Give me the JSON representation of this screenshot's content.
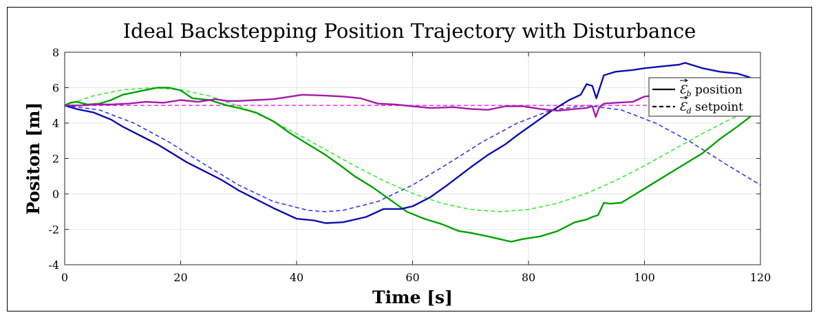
{
  "chart_data": {
    "type": "line",
    "title": "Ideal Backstepping Position Trajectory with Disturbance",
    "xlabel": "Time [s]",
    "ylabel": "Positon [m]",
    "xlim": [
      0,
      120
    ],
    "ylim": [
      -4,
      8
    ],
    "xticks": [
      0,
      20,
      40,
      60,
      80,
      100,
      120
    ],
    "yticks": [
      -4,
      -2,
      0,
      2,
      4,
      6,
      8
    ],
    "grid": true,
    "legend": {
      "placement": "top-right",
      "entries": [
        {
          "style": "solid",
          "symbol": "Ɛ",
          "sub": "b",
          "text": "position"
        },
        {
          "style": "dashed",
          "symbol": "Ɛ",
          "sub": "d",
          "text": "setpoint"
        }
      ]
    },
    "series": [
      {
        "color": "#0d0dad",
        "style": "solid",
        "x": [
          0,
          2,
          5,
          8,
          10,
          13,
          16,
          18,
          21,
          24,
          27,
          30,
          33,
          36,
          40,
          43,
          45,
          48,
          52,
          55,
          58,
          60,
          63,
          66,
          70,
          73,
          76,
          78,
          81,
          84,
          87,
          89,
          90,
          91,
          91.7,
          92.3,
          93,
          95,
          98,
          100,
          103,
          106,
          107,
          110,
          113,
          116,
          118,
          120
        ],
        "y": [
          5.0,
          4.8,
          4.6,
          4.2,
          3.8,
          3.3,
          2.8,
          2.4,
          1.8,
          1.3,
          0.8,
          0.2,
          -0.3,
          -0.8,
          -1.4,
          -1.5,
          -1.65,
          -1.6,
          -1.3,
          -0.85,
          -0.85,
          -0.7,
          -0.2,
          0.5,
          1.5,
          2.2,
          2.8,
          3.3,
          4.0,
          4.7,
          5.3,
          5.6,
          6.2,
          6.1,
          5.4,
          6.0,
          6.7,
          6.9,
          7.0,
          7.1,
          7.2,
          7.3,
          7.4,
          7.1,
          6.9,
          6.8,
          6.6,
          6.2
        ]
      },
      {
        "color": "#00a000",
        "style": "solid",
        "x": [
          0,
          1,
          2,
          4,
          6,
          8,
          10,
          13,
          16,
          18,
          20,
          22,
          25,
          28,
          30,
          33,
          36,
          39,
          42,
          45,
          48,
          50,
          53,
          56,
          59,
          62,
          65,
          68,
          70,
          73,
          75,
          77,
          79,
          82,
          85,
          88,
          90,
          91,
          92,
          93,
          94,
          96,
          98,
          100,
          103,
          106,
          110,
          113,
          116,
          118,
          120
        ],
        "y": [
          5.0,
          5.15,
          5.2,
          5.05,
          5.1,
          5.3,
          5.6,
          5.8,
          6.0,
          6.0,
          5.85,
          5.4,
          5.3,
          5.0,
          4.85,
          4.6,
          4.1,
          3.4,
          2.8,
          2.2,
          1.5,
          1.0,
          0.4,
          -0.3,
          -1.0,
          -1.4,
          -1.7,
          -2.1,
          -2.2,
          -2.4,
          -2.55,
          -2.7,
          -2.55,
          -2.4,
          -2.1,
          -1.6,
          -1.45,
          -1.3,
          -1.2,
          -0.5,
          -0.55,
          -0.5,
          -0.1,
          0.3,
          0.9,
          1.5,
          2.3,
          3.1,
          3.8,
          4.3,
          4.9
        ]
      },
      {
        "color": "#a21aa7",
        "style": "solid",
        "x": [
          0,
          3,
          5,
          8,
          11,
          14,
          17,
          20,
          23,
          26,
          28,
          30,
          33,
          36,
          38,
          41,
          45,
          48,
          51,
          54,
          57,
          60,
          63,
          67,
          70,
          73,
          76,
          79,
          82,
          85,
          88,
          90,
          91,
          91.6,
          92.2,
          93,
          95,
          98,
          100,
          103,
          106,
          110,
          113,
          116,
          118,
          120
        ],
        "y": [
          5.0,
          5.0,
          5.05,
          5.05,
          5.1,
          5.2,
          5.15,
          5.3,
          5.2,
          5.35,
          5.25,
          5.25,
          5.3,
          5.35,
          5.45,
          5.6,
          5.55,
          5.5,
          5.4,
          5.1,
          5.05,
          4.95,
          4.85,
          4.9,
          4.8,
          4.75,
          4.95,
          4.95,
          4.8,
          4.7,
          4.8,
          4.85,
          4.95,
          4.35,
          4.9,
          5.1,
          5.15,
          5.2,
          5.5,
          5.6,
          5.65,
          5.8,
          5.85,
          5.95,
          6.0,
          6.2
        ]
      },
      {
        "color": "#3333ee",
        "style": "dashed",
        "equation": "y = 2 + 3*cos(2*pi*t/90)",
        "x": [
          0,
          6,
          12,
          18,
          24,
          30,
          36,
          42,
          45,
          48,
          54,
          60,
          66,
          72,
          78,
          84,
          90,
          96,
          102,
          108,
          114,
          120
        ],
        "y": [
          5.0,
          4.74,
          3.99,
          2.93,
          1.69,
          0.5,
          -0.43,
          -0.93,
          -1.0,
          -0.93,
          -0.43,
          0.5,
          1.69,
          2.93,
          3.99,
          4.74,
          5.0,
          4.74,
          3.99,
          2.93,
          1.69,
          0.5
        ]
      },
      {
        "color": "#33ee33",
        "style": "dashed",
        "equation": "y = 2.5 + 3.5*cos(2*pi*(t-15)/120)",
        "x": [
          0,
          5,
          10,
          15,
          20,
          25,
          30,
          35,
          40,
          45,
          50,
          55,
          60,
          65,
          70,
          75,
          80,
          85,
          90,
          95,
          100,
          105,
          110,
          115,
          120
        ],
        "y": [
          5.0,
          5.54,
          5.88,
          6.0,
          5.88,
          5.53,
          4.97,
          4.25,
          3.41,
          2.5,
          1.59,
          0.75,
          0.03,
          -0.53,
          -0.88,
          -1.0,
          -0.88,
          -0.53,
          0.03,
          0.75,
          1.59,
          2.5,
          3.41,
          4.25,
          4.97
        ]
      },
      {
        "color": "#ee33ee",
        "style": "dashed",
        "x": [
          0,
          120
        ],
        "y": [
          5.0,
          5.0
        ]
      }
    ]
  }
}
